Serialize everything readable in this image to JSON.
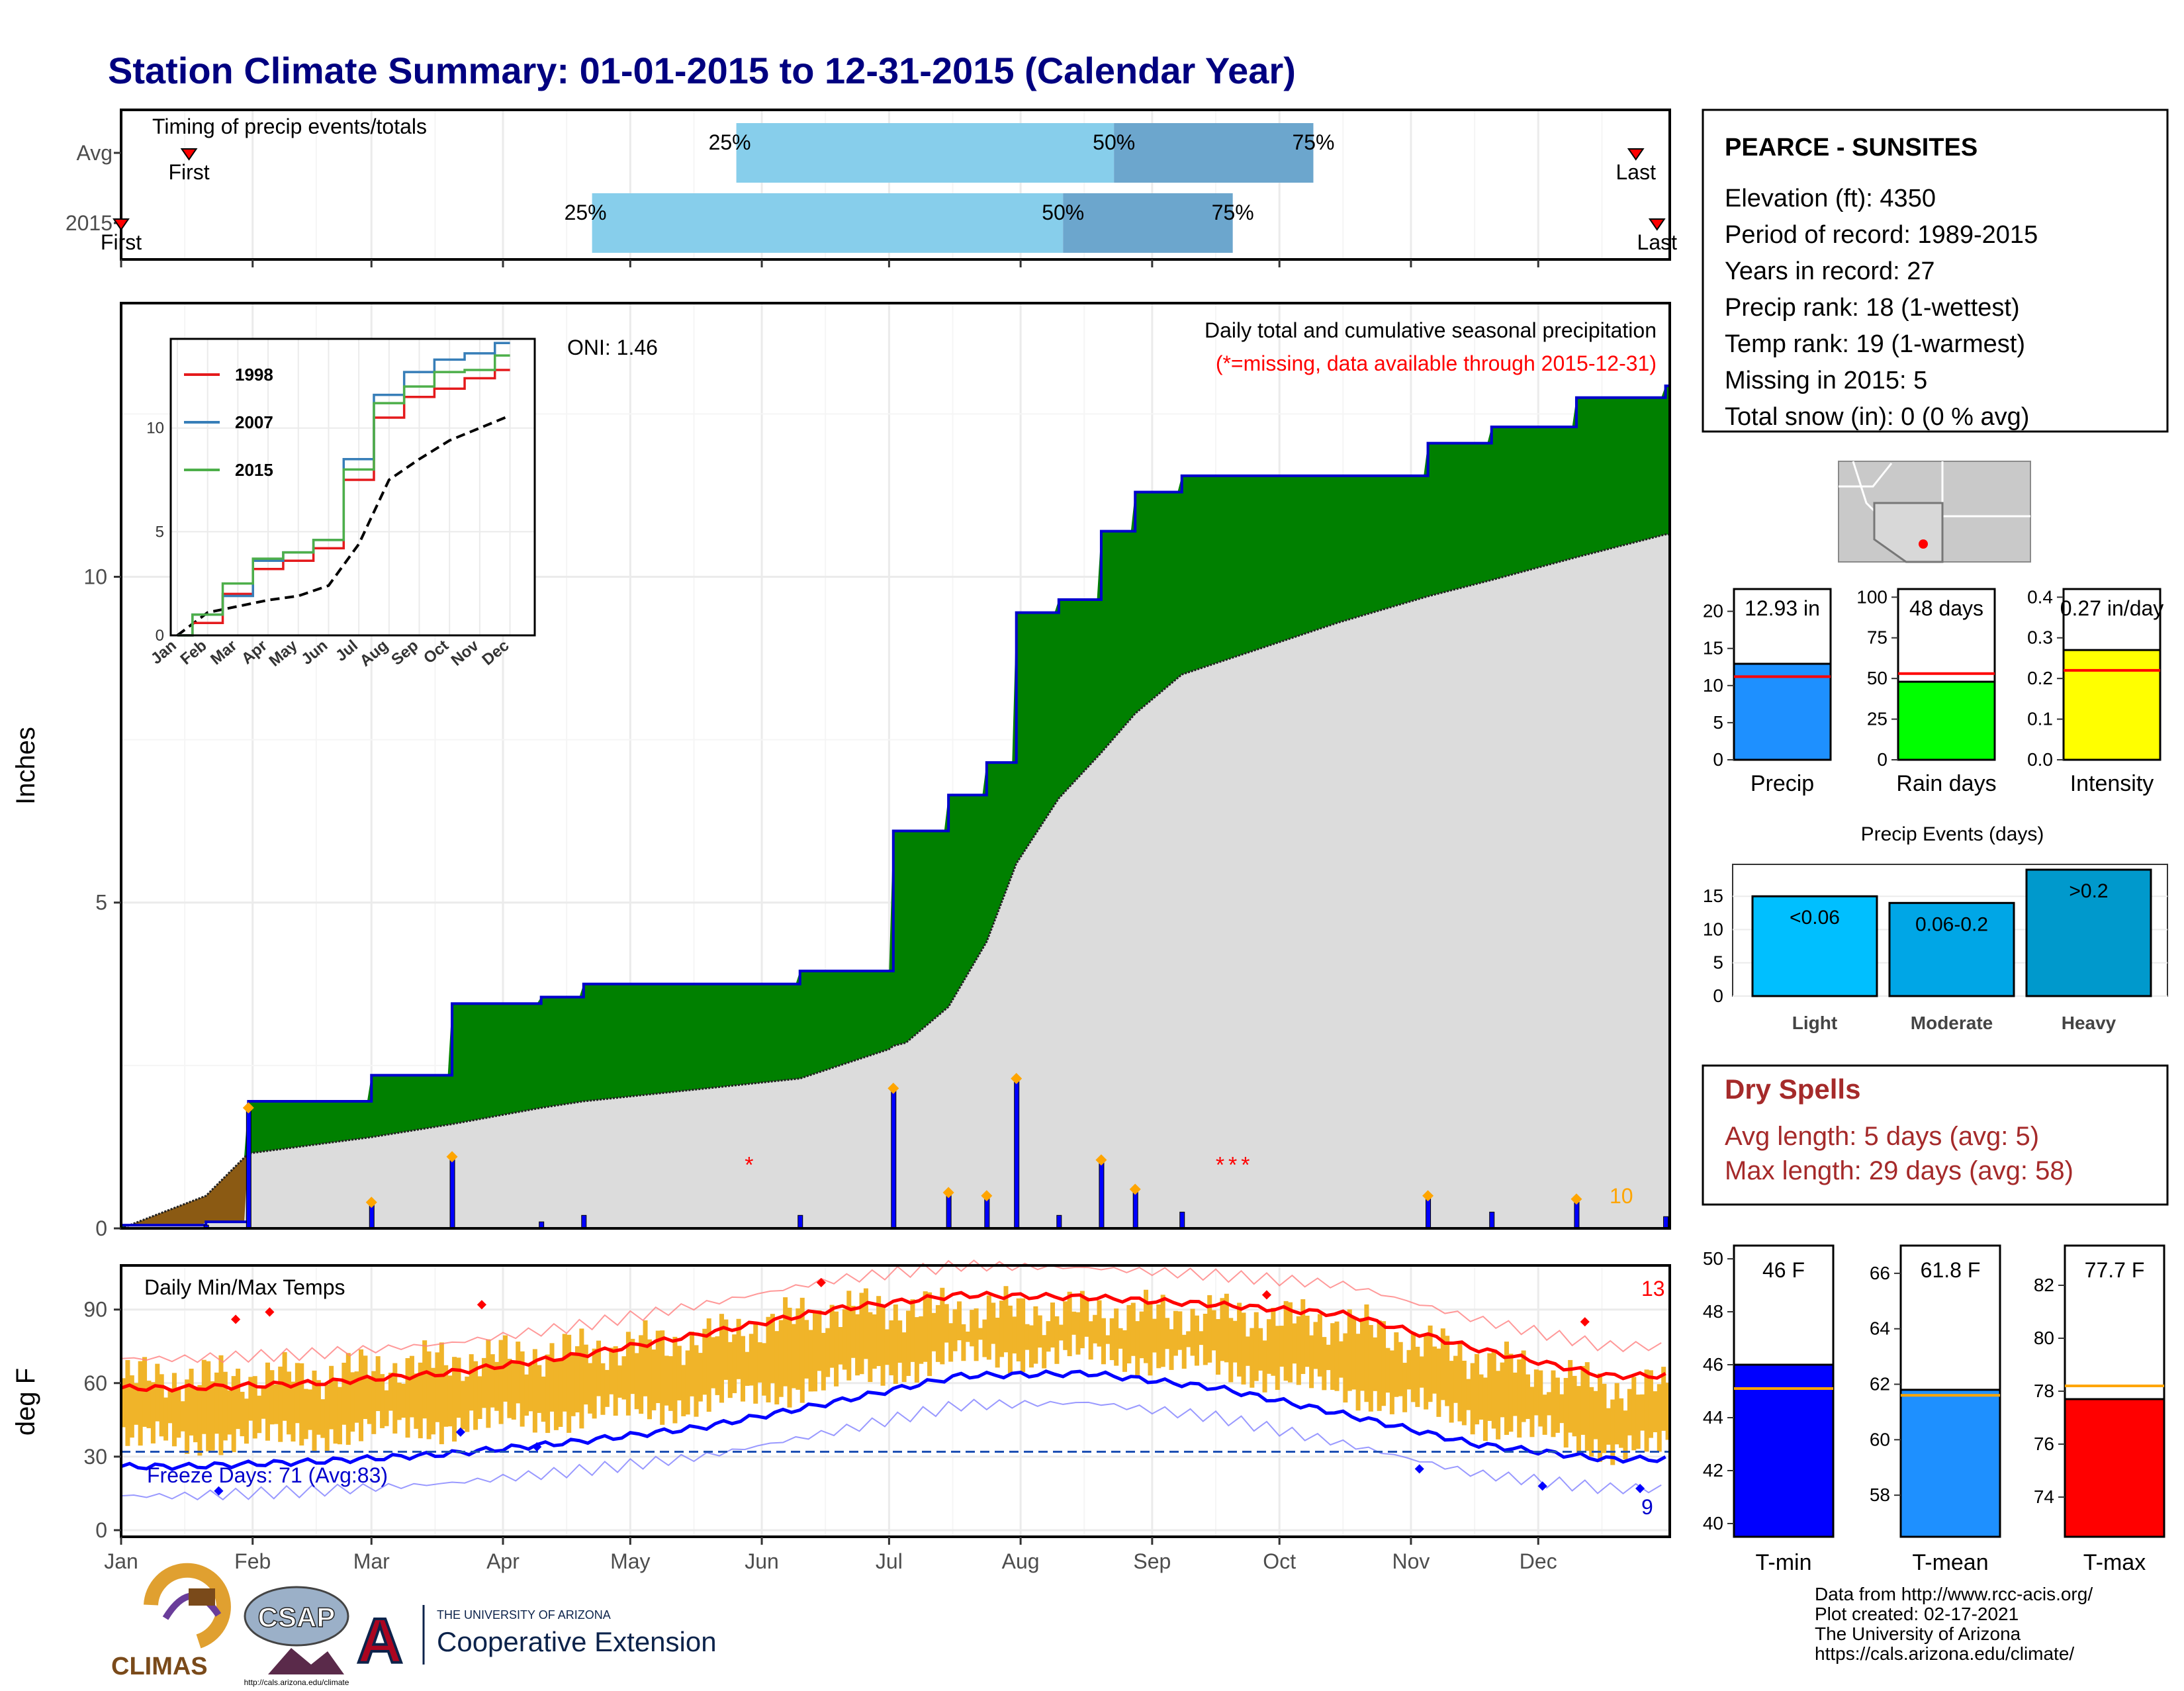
{
  "page": {
    "title": "Station Climate Summary: 01-01-2015 to 12-31-2015 (Calendar Year)"
  },
  "timing": {
    "caption": "Timing of precip events/totals",
    "rows": [
      {
        "label": "Avg",
        "first_label": "First",
        "last_label": "Last",
        "first_day": 16,
        "last_day": 357,
        "p25_day": 145,
        "p50_day": 234,
        "p75_day": 281,
        "p25": "25%",
        "p50": "50%",
        "p75": "75%"
      },
      {
        "label": "2015",
        "first_label": "First",
        "last_label": "Last",
        "first_day": 0,
        "last_day": 362,
        "p25_day": 111,
        "p50_day": 222,
        "p75_day": 262,
        "p25": "25%",
        "p50": "50%",
        "p75": "75%"
      }
    ]
  },
  "precip": {
    "ylabel": "Inches",
    "title": "Daily total and cumulative seasonal precipitation",
    "subtitle": "(*=missing, data available through 2015-12-31)",
    "oni": "ONI: 1.46",
    "count_label": "10",
    "yticks": [
      "0",
      "5",
      "10"
    ],
    "colors": {
      "above": "#008000",
      "below": "#8b5a13",
      "normal": "#dcdcdc",
      "line": "#0000cd",
      "bars": "#0000ff",
      "missing": "#ff0000",
      "marker": "#ffa500"
    }
  },
  "inset": {
    "yticks": [
      "0",
      "5",
      "10"
    ],
    "xticks": [
      "Jan",
      "Feb",
      "Mar",
      "Apr",
      "May",
      "Jun",
      "Jul",
      "Aug",
      "Sep",
      "Oct",
      "Nov",
      "Dec"
    ],
    "legend": [
      {
        "name": "1998",
        "color": "#e41a1c"
      },
      {
        "name": "2007",
        "color": "#377eb8"
      },
      {
        "name": "2015",
        "color": "#4daf4a"
      }
    ]
  },
  "temp": {
    "ylabel": "deg F",
    "title": "Daily Min/Max Temps",
    "freeze": "Freeze Days: 71 (Avg:83)",
    "count_hi": "13",
    "count_lo": "9",
    "yticks": [
      "0",
      "30",
      "60",
      "90"
    ]
  },
  "months": [
    "Jan",
    "Feb",
    "Mar",
    "Apr",
    "May",
    "Jun",
    "Jul",
    "Aug",
    "Sep",
    "Oct",
    "Nov",
    "Dec"
  ],
  "station": {
    "name": "PEARCE - SUNSITES",
    "lines": [
      "Elevation (ft): 4350",
      "Period of record: 1989-2015",
      "Years in record: 27",
      "Precip rank: 18 (1-wettest)",
      "Temp rank: 19 (1-warmest)",
      "Missing in 2015: 5",
      "Total snow (in): 0 (0 % avg)"
    ]
  },
  "minis": [
    {
      "label": "Precip",
      "value_text": "12.93 in",
      "value": 12.93,
      "avg": 11.2,
      "ymax": 23,
      "yticks": [
        "0",
        "5",
        "10",
        "15",
        "20"
      ],
      "tickvals": [
        0,
        5,
        10,
        15,
        20
      ],
      "color": "#1e90ff"
    },
    {
      "label": "Rain days",
      "value_text": "48 days",
      "value": 48,
      "avg": 53,
      "ymax": 105,
      "yticks": [
        "0",
        "25",
        "50",
        "75",
        "100"
      ],
      "tickvals": [
        0,
        25,
        50,
        75,
        100
      ],
      "color": "#00ff00"
    },
    {
      "label": "Intensity",
      "value_text": "0.27 in/day",
      "value": 0.27,
      "avg": 0.22,
      "ymax": 0.42,
      "yticks": [
        "0.0",
        "0.1",
        "0.2",
        "0.3",
        "0.4"
      ],
      "tickvals": [
        0,
        0.1,
        0.2,
        0.3,
        0.4
      ],
      "color": "#ffff00"
    }
  ],
  "events": {
    "title": "Precip Events (days)",
    "yticks": [
      "0",
      "5",
      "10",
      "15"
    ],
    "categories": [
      "Light",
      "Moderate",
      "Heavy"
    ],
    "bar_labels": [
      "<0.06",
      "0.06-0.2",
      ">0.2"
    ],
    "values": [
      15,
      14,
      19
    ],
    "colors": [
      "#00bfff",
      "#00a6e6",
      "#0099cc"
    ]
  },
  "dry": {
    "title": "Dry Spells",
    "avg": "Avg length: 5 days (avg: 5)",
    "max": "Max length: 29 days (avg: 58)"
  },
  "temps_bars": [
    {
      "label": "T-min",
      "value_text": "46 F",
      "value": 46,
      "avg": 45.1,
      "ymin": 39.5,
      "ymax": 50.5,
      "yticks": [
        "40",
        "42",
        "44",
        "46",
        "48",
        "50"
      ],
      "tickvals": [
        40,
        42,
        44,
        46,
        48,
        50
      ],
      "color": "#0000ff"
    },
    {
      "label": "T-mean",
      "value_text": "61.8 F",
      "value": 61.8,
      "avg": 61.6,
      "ymin": 56.5,
      "ymax": 67,
      "yticks": [
        "58",
        "60",
        "62",
        "64",
        "66"
      ],
      "tickvals": [
        58,
        60,
        62,
        64,
        66
      ],
      "color": "#1e90ff"
    },
    {
      "label": "T-max",
      "value_text": "77.7 F",
      "value": 77.7,
      "avg": 78.2,
      "ymin": 72.5,
      "ymax": 83.5,
      "yticks": [
        "74",
        "76",
        "78",
        "80",
        "82"
      ],
      "tickvals": [
        74,
        76,
        78,
        80,
        82
      ],
      "color": "#ff0000"
    }
  ],
  "footer": {
    "lines": [
      "Data from http://www.rcc-acis.org/",
      "Plot created: 02-17-2021",
      "The University of Arizona",
      "https://cals.arizona.edu/climate/"
    ],
    "climas": "CLIMAS",
    "csap": "CSAP",
    "csap_url": "http://cals.arizona.edu/climate",
    "ua_small": "THE UNIVERSITY OF ARIZONA",
    "ua_big": "Cooperative Extension"
  },
  "chart_data": [
    {
      "type": "bar",
      "title": "Timing of precip events/totals",
      "categories": [
        "Avg",
        "2015"
      ],
      "series": [
        {
          "name": "25%",
          "values": [
            "May 26",
            "Apr 22"
          ]
        },
        {
          "name": "50%",
          "values": [
            "Aug 23",
            "Aug 11"
          ]
        },
        {
          "name": "75%",
          "values": [
            "Oct 9",
            "Sep 20"
          ]
        }
      ]
    },
    {
      "type": "area",
      "title": "Daily total and cumulative seasonal precipitation",
      "ylabel": "Inches",
      "ylim": [
        0,
        14.2
      ],
      "x": [
        "Jan 1",
        "Jan 21",
        "Jan 31",
        "Mar 1",
        "Mar 20",
        "Apr 10",
        "Apr 20",
        "Jun 10",
        "Jul 1",
        "Jul 2",
        "Jul 5",
        "Jul 15",
        "Jul 24",
        "Jul 31",
        "Aug 10",
        "Aug 20",
        "Aug 28",
        "Sep 8",
        "Oct 15",
        "Nov 5",
        "Nov 20",
        "Dec 10",
        "Dec 31"
      ],
      "series": [
        {
          "name": "2015",
          "values": [
            0.05,
            0.1,
            1.95,
            2.35,
            3.45,
            3.55,
            3.75,
            3.95,
            3.95,
            6.1,
            6.1,
            6.65,
            7.15,
            9.45,
            9.65,
            10.7,
            11.3,
            11.55,
            11.55,
            12.05,
            12.3,
            12.75,
            12.93
          ]
        },
        {
          "name": "normal",
          "values": [
            0.0,
            0.5,
            1.15,
            1.4,
            1.6,
            1.85,
            1.95,
            2.3,
            2.75,
            2.8,
            2.85,
            3.4,
            4.4,
            5.6,
            6.6,
            7.3,
            7.9,
            8.5,
            9.3,
            9.7,
            9.95,
            10.3,
            10.65
          ]
        }
      ]
    },
    {
      "type": "line",
      "categories": [
        "Jan",
        "Feb",
        "Mar",
        "Apr",
        "May",
        "Jun",
        "Jul",
        "Aug",
        "Sep",
        "Oct",
        "Nov",
        "Dec"
      ],
      "series": [
        {
          "name": "1998",
          "values": [
            0,
            0.6,
            2.0,
            3.2,
            3.6,
            4.2,
            7.5,
            10.5,
            11.5,
            11.9,
            12.4,
            12.8
          ]
        },
        {
          "name": "2007",
          "values": [
            0,
            1.0,
            1.9,
            3.6,
            4.0,
            4.6,
            8.5,
            11.6,
            12.7,
            13.3,
            13.6,
            14.1
          ]
        },
        {
          "name": "2015",
          "values": [
            0,
            1.0,
            2.5,
            3.7,
            4.0,
            4.6,
            8.0,
            11.2,
            12.0,
            12.7,
            12.8,
            13.5
          ]
        }
      ],
      "ylim": [
        0,
        14
      ]
    },
    {
      "type": "line",
      "title": "Daily Min/Max Temps",
      "ylabel": "deg F",
      "ylim": [
        0,
        108
      ],
      "categories": [
        "Jan",
        "Feb",
        "Mar",
        "Apr",
        "May",
        "Jun",
        "Jul",
        "Aug",
        "Sep",
        "Oct",
        "Nov",
        "Dec"
      ],
      "series": [
        {
          "name": "Tmax avg",
          "values": [
            58,
            60,
            64,
            71,
            80,
            90,
            96,
            95,
            92,
            88,
            74,
            63
          ]
        },
        {
          "name": "Tmin avg",
          "values": [
            26,
            28,
            31,
            36,
            42,
            52,
            63,
            64,
            58,
            47,
            35,
            29
          ]
        },
        {
          "name": "Tmax 2015",
          "values": [
            62,
            63,
            69,
            73,
            78,
            90,
            90,
            89,
            88,
            84,
            70,
            58
          ]
        },
        {
          "name": "Tmin 2015",
          "values": [
            29,
            31,
            35,
            39,
            44,
            53,
            63,
            64,
            59,
            49,
            37,
            26
          ]
        }
      ]
    }
  ]
}
